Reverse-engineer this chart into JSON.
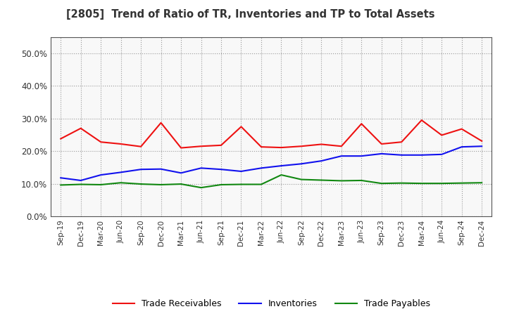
{
  "title": "[2805]  Trend of Ratio of TR, Inventories and TP to Total Assets",
  "x_labels": [
    "Sep-19",
    "Dec-19",
    "Mar-20",
    "Jun-20",
    "Sep-20",
    "Dec-20",
    "Mar-21",
    "Jun-21",
    "Sep-21",
    "Dec-21",
    "Mar-22",
    "Jun-22",
    "Sep-22",
    "Dec-22",
    "Mar-23",
    "Jun-23",
    "Sep-23",
    "Dec-23",
    "Mar-24",
    "Jun-24",
    "Sep-24",
    "Dec-24"
  ],
  "trade_receivables": [
    0.238,
    0.27,
    0.228,
    0.222,
    0.214,
    0.287,
    0.21,
    0.215,
    0.218,
    0.275,
    0.213,
    0.211,
    0.215,
    0.221,
    0.215,
    0.284,
    0.222,
    0.228,
    0.295,
    0.249,
    0.268,
    0.231
  ],
  "inventories": [
    0.118,
    0.11,
    0.127,
    0.135,
    0.144,
    0.145,
    0.133,
    0.148,
    0.144,
    0.138,
    0.148,
    0.155,
    0.161,
    0.17,
    0.185,
    0.185,
    0.192,
    0.188,
    0.188,
    0.19,
    0.213,
    0.215
  ],
  "trade_payables": [
    0.096,
    0.098,
    0.097,
    0.103,
    0.099,
    0.097,
    0.099,
    0.088,
    0.097,
    0.098,
    0.098,
    0.127,
    0.113,
    0.111,
    0.109,
    0.11,
    0.101,
    0.102,
    0.101,
    0.101,
    0.102,
    0.103
  ],
  "ylim": [
    0.0,
    0.55
  ],
  "yticks": [
    0.0,
    0.1,
    0.2,
    0.3,
    0.4,
    0.5
  ],
  "line_colors": {
    "trade_receivables": "#EE1111",
    "inventories": "#1111EE",
    "trade_payables": "#118811"
  },
  "legend_labels": [
    "Trade Receivables",
    "Inventories",
    "Trade Payables"
  ],
  "plot_bg_color": "#F8F8F8",
  "fig_bg_color": "#FFFFFF",
  "grid_color": "#999999",
  "title_color": "#333333",
  "tick_color": "#333333"
}
